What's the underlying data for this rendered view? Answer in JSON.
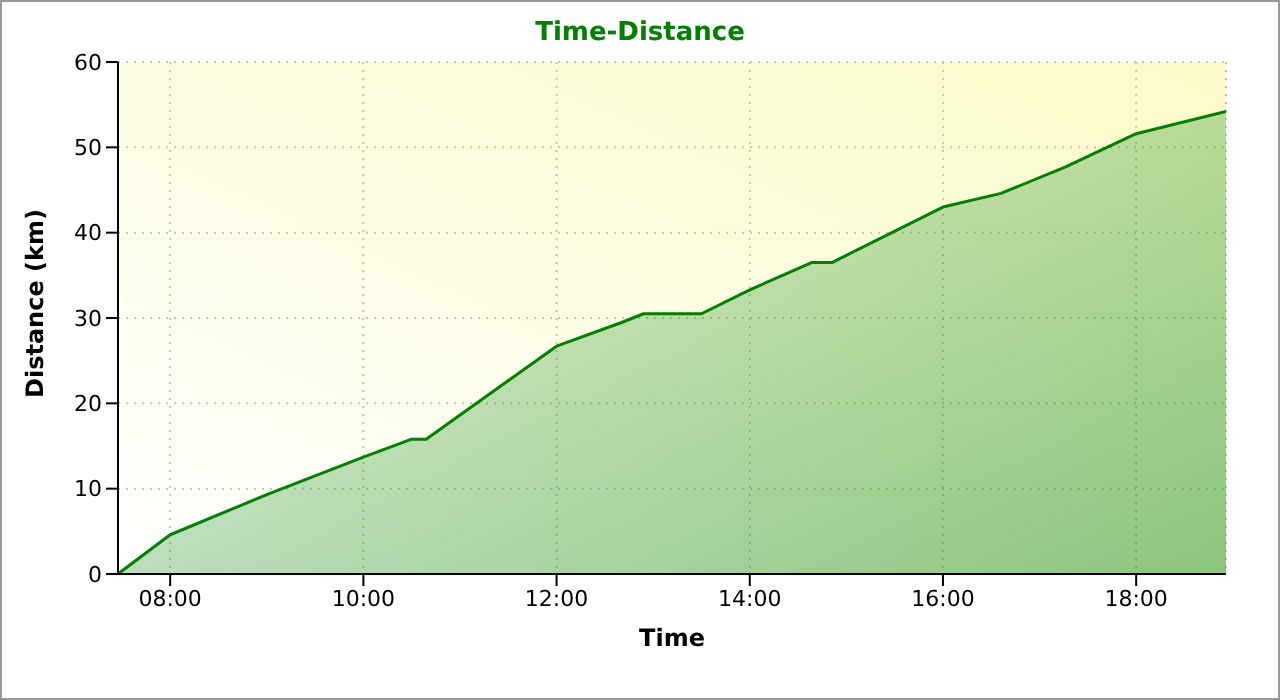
{
  "chart_data": {
    "type": "area",
    "title": "Time-Distance",
    "xlabel": "Time",
    "ylabel": "Distance (km)",
    "x": [
      7.46,
      8,
      9,
      10,
      10.5,
      10.65,
      12,
      12.68,
      12.9,
      13.5,
      14,
      14.64,
      14.85,
      16,
      16.6,
      17.27,
      18,
      18.93
    ],
    "series": [
      {
        "color": "#008000",
        "values": [
          0,
          4.6,
          9.3,
          13.7,
          15.8,
          15.8,
          26.7,
          29.5,
          30.5,
          30.5,
          33.3,
          36.5,
          36.5,
          43,
          44.6,
          47.7,
          51.6,
          54.2
        ]
      }
    ],
    "xlim": [
      7.46,
      18.93
    ],
    "xticks": [
      {
        "value": 8,
        "label": "08:00"
      },
      {
        "value": 10,
        "label": "10:00"
      },
      {
        "value": 12,
        "label": "12:00"
      },
      {
        "value": 14,
        "label": "14:00"
      },
      {
        "value": 16,
        "label": "16:00"
      },
      {
        "value": 18,
        "label": "18:00"
      }
    ],
    "ylim": [
      0,
      60
    ],
    "yticks": [
      0,
      10,
      20,
      30,
      40,
      50,
      60
    ],
    "grid": true,
    "marker": "none"
  }
}
